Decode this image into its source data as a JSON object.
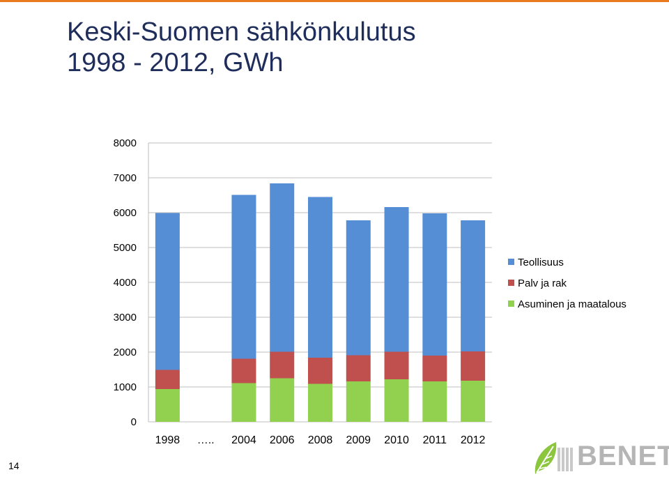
{
  "slide": {
    "title_line1": "Keski-Suomen sähkönkulutus",
    "title_line2": "1998 - 2012, GWh",
    "page_number": "14",
    "accent_color": "#e97a1e",
    "title_color": "#1f2d5a"
  },
  "logo": {
    "text": "BENET",
    "icon": "leaf-icon",
    "leaf_color": "#8cc63f",
    "text_color": "#b5b5b5"
  },
  "chart_data": {
    "type": "bar",
    "stacked": true,
    "title": "",
    "xlabel": "",
    "ylabel": "",
    "categories": [
      "1998",
      "…..",
      "2004",
      "2006",
      "2008",
      "2009",
      "2010",
      "2011",
      "2012"
    ],
    "series": [
      {
        "name": "Asuminen ja maatalous",
        "color": "#92d050",
        "values": [
          940,
          null,
          1110,
          1250,
          1090,
          1160,
          1220,
          1160,
          1180
        ]
      },
      {
        "name": "Palv ja rak",
        "color": "#c0504d",
        "values": [
          550,
          null,
          700,
          760,
          750,
          750,
          790,
          740,
          840
        ]
      },
      {
        "name": "Teollisuus",
        "color": "#558ed5",
        "values": [
          4500,
          null,
          4700,
          4830,
          4610,
          3870,
          4150,
          4080,
          3760
        ]
      }
    ],
    "ylim": [
      0,
      8000
    ],
    "yticks": [
      0,
      1000,
      2000,
      3000,
      4000,
      5000,
      6000,
      7000,
      8000
    ],
    "grid": true,
    "legend_position": "right",
    "legend_order": [
      "Teollisuus",
      "Palv ja rak",
      "Asuminen ja maatalous"
    ]
  }
}
